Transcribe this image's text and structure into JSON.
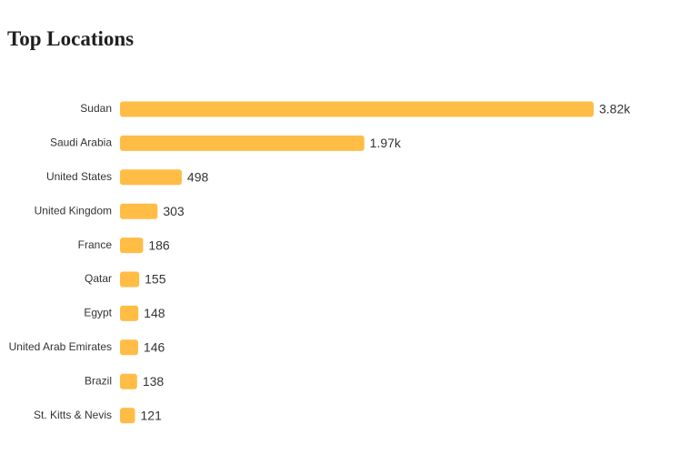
{
  "title": "Top Locations",
  "chart_data": {
    "type": "bar",
    "orientation": "horizontal",
    "title": "Top Locations",
    "categories": [
      "Sudan",
      "Saudi Arabia",
      "United States",
      "United Kingdom",
      "France",
      "Qatar",
      "Egypt",
      "United Arab Emirates",
      "Brazil",
      "St. Kitts & Nevis"
    ],
    "values": [
      3820,
      1970,
      498,
      303,
      186,
      155,
      148,
      146,
      138,
      121
    ],
    "value_labels": [
      "3.82k",
      "1.97k",
      "498",
      "303",
      "186",
      "155",
      "148",
      "146",
      "138",
      "121"
    ],
    "xlabel": "",
    "ylabel": "",
    "grid": false,
    "legend": "none",
    "bar_color": "#FFBD45"
  }
}
